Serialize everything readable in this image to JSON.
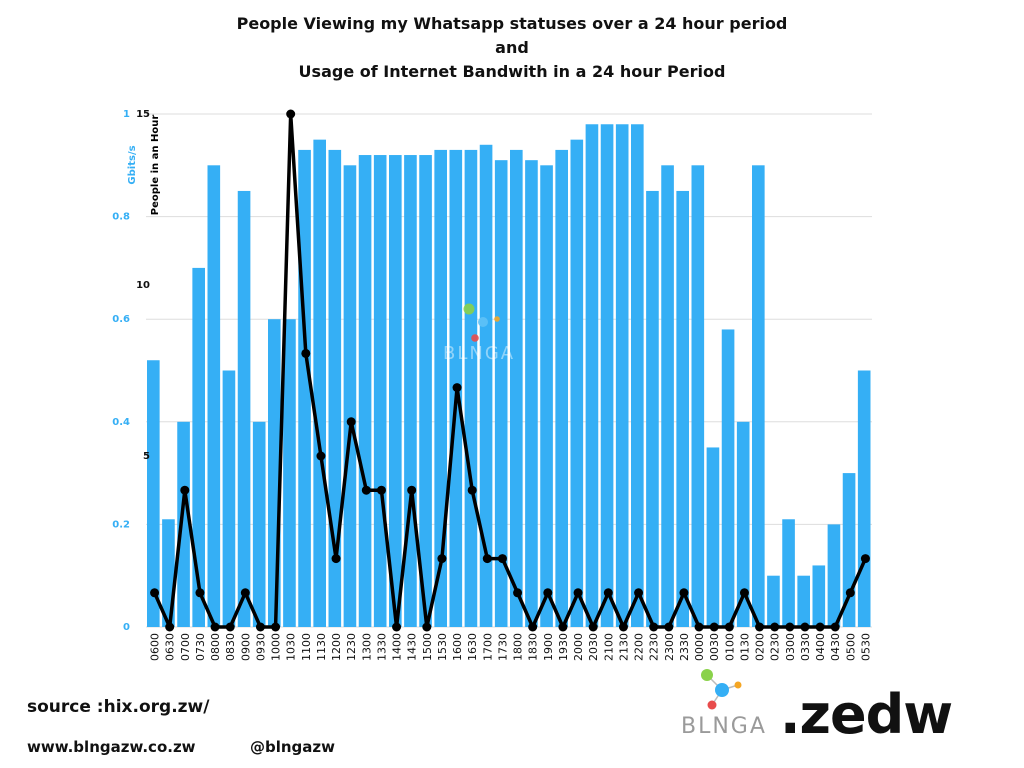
{
  "title": {
    "line1": "People Viewing my Whatsapp statuses over a 24 hour period",
    "line2": "and",
    "line3": "Usage of Internet Bandwith in a 24 hour Period"
  },
  "chart_data": {
    "type": "bar",
    "categories": [
      "0600",
      "0630",
      "0700",
      "0730",
      "0800",
      "0830",
      "0900",
      "0930",
      "1000",
      "1030",
      "1100",
      "1130",
      "1200",
      "1230",
      "1300",
      "1330",
      "1400",
      "1430",
      "1500",
      "1530",
      "1600",
      "1630",
      "1700",
      "1730",
      "1800",
      "1830",
      "1900",
      "1930",
      "2000",
      "2030",
      "2100",
      "2130",
      "2200",
      "2230",
      "2300",
      "2330",
      "0000",
      "0030",
      "0100",
      "0130",
      "0200",
      "0230",
      "0300",
      "0330",
      "0400",
      "0430",
      "0500",
      "0530"
    ],
    "series": [
      {
        "type": "bar",
        "axis": "left",
        "color": "#35aff5",
        "values": [
          0.52,
          0.21,
          0.4,
          0.7,
          0.9,
          0.5,
          0.85,
          0.4,
          0.6,
          0.6,
          0.93,
          0.95,
          0.93,
          0.9,
          0.92,
          0.92,
          0.92,
          0.92,
          0.92,
          0.93,
          0.93,
          0.93,
          0.94,
          0.91,
          0.93,
          0.91,
          0.9,
          0.93,
          0.95,
          0.98,
          0.98,
          0.98,
          0.98,
          0.85,
          0.9,
          0.85,
          0.9,
          0.35,
          0.58,
          0.4,
          0.9,
          0.1,
          0.21,
          0.1,
          0.12,
          0.2,
          0.3,
          0.5
        ]
      },
      {
        "type": "line",
        "axis": "right",
        "color": "#000000",
        "values": [
          1,
          0,
          4,
          1,
          0,
          0,
          1,
          0,
          0,
          15,
          8,
          5,
          2,
          6,
          4,
          4,
          0,
          4,
          0,
          2,
          7,
          4,
          2,
          2,
          1,
          0,
          1,
          0,
          1,
          0,
          1,
          0,
          1,
          0,
          0,
          1,
          0,
          0,
          0,
          1,
          0,
          0,
          0,
          0,
          0,
          0,
          1,
          2
        ]
      }
    ],
    "y_left": {
      "label": "Gbits/s",
      "ticks": [
        "0",
        "0.2",
        "0.4",
        "0.6",
        "0.8",
        "1"
      ],
      "lim": [
        0,
        1
      ]
    },
    "y_right": {
      "label": "People in an Hour",
      "ticks": [
        "5",
        "10",
        "15"
      ],
      "lim": [
        0,
        15
      ]
    },
    "grid": true,
    "legend": "none"
  },
  "footer": {
    "source": "source :hix.org.zw/",
    "website": "www.blngazw.co.zw",
    "handle": "@blngazw",
    "brand": "BLNGA",
    "zedw": ".zedw",
    "watermark": "BLNGA"
  },
  "colors": {
    "bar": "#35aff5",
    "line": "#000000",
    "axis_label": "#35aff5"
  }
}
